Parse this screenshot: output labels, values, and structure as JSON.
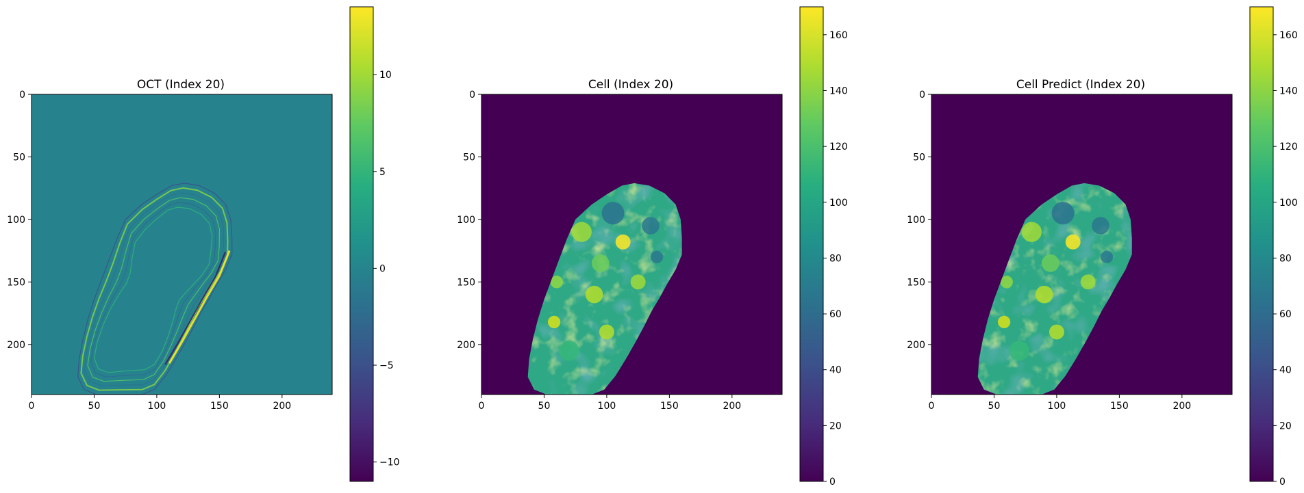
{
  "colors": {
    "viridis_low": "#440154",
    "viridis_quarter": "#3b528b",
    "viridis_mid": "#21918c",
    "viridis_three_quarter": "#5ec962",
    "viridis_high": "#fde725",
    "oct_background": "#26838e",
    "cell_background": "#440154"
  },
  "chart_data": [
    {
      "type": "heatmap",
      "title": "OCT (Index 20)",
      "colormap": "viridis",
      "xlim": [
        0,
        240
      ],
      "ylim": [
        240,
        0
      ],
      "xticks": [
        0,
        50,
        100,
        150,
        200
      ],
      "yticks": [
        0,
        50,
        100,
        150,
        200
      ],
      "colorbar": {
        "range": [
          -11,
          13.5
        ],
        "ticks": [
          -10,
          -5,
          0,
          5,
          10
        ]
      },
      "description_values": {
        "background_level": 0,
        "edge_ring_range": [
          -10,
          13
        ]
      }
    },
    {
      "type": "heatmap",
      "title": "Cell (Index 20)",
      "colormap": "viridis",
      "xlim": [
        0,
        240
      ],
      "ylim": [
        240,
        0
      ],
      "xticks": [
        0,
        50,
        100,
        150,
        200
      ],
      "yticks": [
        0,
        50,
        100,
        150,
        200
      ],
      "colorbar": {
        "range": [
          0,
          170
        ],
        "ticks": [
          0,
          20,
          40,
          60,
          80,
          100,
          120,
          140,
          160
        ]
      },
      "description_values": {
        "background_level": 0,
        "cell_range": [
          70,
          165
        ]
      }
    },
    {
      "type": "heatmap",
      "title": "Cell Predict (Index 20)",
      "colormap": "viridis",
      "xlim": [
        0,
        240
      ],
      "ylim": [
        240,
        0
      ],
      "xticks": [
        0,
        50,
        100,
        150,
        200
      ],
      "yticks": [
        0,
        50,
        100,
        150,
        200
      ],
      "colorbar": {
        "range": [
          0,
          170
        ],
        "ticks": [
          0,
          20,
          40,
          60,
          80,
          100,
          120,
          140,
          160
        ]
      },
      "description_values": {
        "background_level": 0,
        "cell_range": [
          70,
          165
        ]
      }
    }
  ]
}
